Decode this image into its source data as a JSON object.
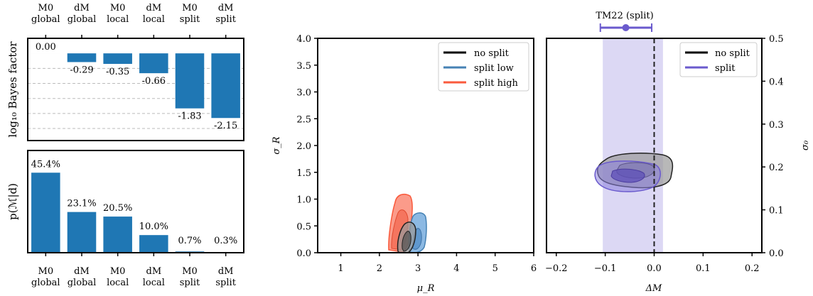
{
  "chart_data": [
    {
      "type": "bar",
      "panel": "bayes-factor",
      "ylabel": "log₁₀ Bayes factor",
      "categories": [
        [
          "M0",
          "global"
        ],
        [
          "dM",
          "global"
        ],
        [
          "M0",
          "local"
        ],
        [
          "dM",
          "local"
        ],
        [
          "M0",
          "split"
        ],
        [
          "dM",
          "split"
        ]
      ],
      "values": [
        0.0,
        -0.29,
        -0.35,
        -0.66,
        -1.83,
        -2.15
      ],
      "value_labels": [
        "0.00",
        "-0.29",
        "-0.35",
        "-0.66",
        "-1.83",
        "-2.15"
      ],
      "ylim": [
        -2.9,
        0.5
      ],
      "grid_lines": [
        -0.5,
        -1.0,
        -1.5,
        -2.0,
        -2.5
      ],
      "grid": "dashed horizontal",
      "color": "#1f77b4"
    },
    {
      "type": "bar",
      "panel": "model-probability",
      "ylabel": "p(ℳ|d)",
      "categories": [
        [
          "M0",
          "global"
        ],
        [
          "dM",
          "global"
        ],
        [
          "M0",
          "local"
        ],
        [
          "dM",
          "local"
        ],
        [
          "M0",
          "split"
        ],
        [
          "dM",
          "split"
        ]
      ],
      "values": [
        45.4,
        23.1,
        20.5,
        10.0,
        0.7,
        0.3
      ],
      "value_labels": [
        "45.4%",
        "23.1%",
        "20.5%",
        "10.0%",
        "0.7%",
        "0.3%"
      ],
      "ylim": [
        0,
        58
      ],
      "color": "#1f77b4"
    },
    {
      "type": "contour",
      "panel": "mu-sigma",
      "xlabel": "μ_R",
      "ylabel": "σ_R",
      "xlim": [
        0.4,
        6.0
      ],
      "ylim": [
        0,
        4.0
      ],
      "xticks": [
        "1",
        "2",
        "3",
        "4",
        "5",
        "6"
      ],
      "yticks": [
        "0.0",
        "0.5",
        "1.0",
        "1.5",
        "2.0",
        "2.5",
        "3.0",
        "3.5",
        "4.0"
      ],
      "legend": "top-right",
      "series": [
        {
          "name": "no split",
          "color": "#000000",
          "center": [
            2.82,
            0.4
          ]
        },
        {
          "name": "split low",
          "color": "#4682b4",
          "center": [
            3.05,
            0.48
          ]
        },
        {
          "name": "split high",
          "color": "#fa5a3c",
          "center": [
            2.67,
            0.62
          ]
        }
      ]
    },
    {
      "type": "contour",
      "panel": "deltaM-sigma0",
      "xlabel": "ΔM",
      "ylabel": "σ₀",
      "xlim": [
        -0.22,
        0.22
      ],
      "ylim": [
        0,
        0.5
      ],
      "xticks": [
        "−0.2",
        "−0.1",
        "0.0",
        "0.1",
        "0.2"
      ],
      "yticks": [
        "0.0",
        "0.1",
        "0.2",
        "0.3",
        "0.4",
        "0.5"
      ],
      "legend": "top-right",
      "reference_line_x": 0.0,
      "band": [
        -0.105,
        0.018
      ],
      "band_color": "#dcd8f4",
      "series": [
        {
          "name": "no split",
          "color": "#000000",
          "center": [
            -0.02,
            0.193
          ]
        },
        {
          "name": "split",
          "color": "#6a5acd",
          "center": [
            -0.045,
            0.185
          ]
        }
      ],
      "errorbar": {
        "label": "TM22 (split)",
        "x": -0.058,
        "xlo": -0.11,
        "xhi": -0.005,
        "color": "#6a5acd"
      }
    }
  ]
}
